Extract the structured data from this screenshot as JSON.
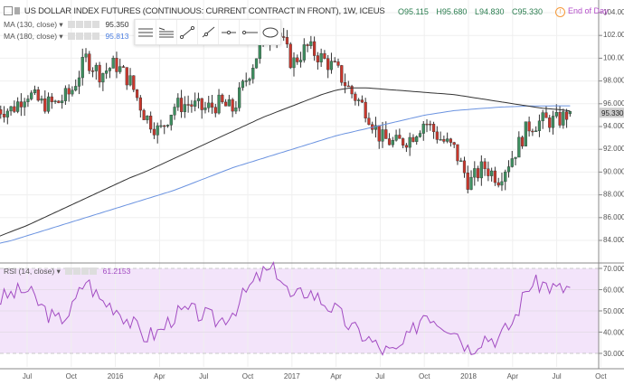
{
  "header": {
    "title": "US DOLLAR INDEX FUTURES (CONTINUOUS: CURRENT CONTRACT IN FRONT), 1W, ICEUS",
    "open": "O95.115",
    "high": "H95.680",
    "low": "L94.830",
    "close": "C95.330",
    "end_of_day": "End of Day"
  },
  "legends": {
    "ma130_label": "MA (130, close)",
    "ma130_value": "95.350",
    "ma180_label": "MA (180, close)",
    "ma180_value": "95.813",
    "rsi_label": "RSI (14, close)",
    "rsi_value": "61.2153"
  },
  "toolbar": {
    "icons": [
      "parallel-channel-icon",
      "fib-icon",
      "trend-line-icon",
      "ray-icon",
      "horizontal-line-icon",
      "horizontal-ray-icon",
      "ellipse-icon"
    ]
  },
  "colors": {
    "up": "#3d8f5f",
    "down": "#c9372c",
    "ma130": "#333333",
    "ma180": "#6b93e0",
    "rsi": "#a24cc2",
    "rsi_band": "#f3e4fa"
  },
  "chart_data": {
    "type": "candlestick",
    "interval": "1W",
    "months": [
      "2015-05",
      "2015-06",
      "2015-07",
      "2015-08",
      "2015-09",
      "2015-10",
      "2015-11",
      "2015-12",
      "2016-01",
      "2016-02",
      "2016-03",
      "2016-04",
      "2016-05",
      "2016-06",
      "2016-07",
      "2016-08",
      "2016-09",
      "2016-10",
      "2016-11",
      "2016-12",
      "2017-01",
      "2017-02",
      "2017-03",
      "2017-04",
      "2017-05",
      "2017-06",
      "2017-07",
      "2017-08",
      "2017-09",
      "2017-10",
      "2017-11",
      "2017-12",
      "2018-01",
      "2018-02",
      "2018-03",
      "2018-04",
      "2018-05",
      "2018-06",
      "2018-07",
      "2018-08"
    ],
    "close": [
      95.5,
      95.5,
      97,
      96,
      96,
      97,
      100,
      98.6,
      99.5,
      98,
      95,
      93.5,
      95.8,
      96,
      95.5,
      96,
      95.5,
      98.5,
      101.5,
      102.5,
      99.5,
      101,
      100,
      99,
      97,
      95.5,
      93,
      92.5,
      93,
      94.5,
      93,
      92,
      89,
      90.5,
      89.5,
      91.5,
      94,
      94.5,
      94.5,
      95.33
    ],
    "ma130": [
      84.3,
      84.8,
      85.3,
      85.9,
      86.5,
      87.1,
      87.7,
      88.3,
      88.9,
      89.5,
      90,
      90.6,
      91.2,
      91.8,
      92.4,
      93,
      93.6,
      94.2,
      94.8,
      95.3,
      95.8,
      96.3,
      96.8,
      97.2,
      97.4,
      97.4,
      97.3,
      97.2,
      97.1,
      97,
      96.9,
      96.8,
      96.6,
      96.4,
      96.2,
      96,
      95.8,
      95.6,
      95.5,
      95.35
    ],
    "ma180": [
      83.7,
      84,
      84.4,
      84.8,
      85.2,
      85.6,
      86,
      86.4,
      86.8,
      87.2,
      87.6,
      88,
      88.4,
      88.9,
      89.4,
      89.9,
      90.4,
      90.8,
      91.2,
      91.6,
      92,
      92.4,
      92.8,
      93.2,
      93.5,
      93.8,
      94.1,
      94.4,
      94.7,
      95,
      95.2,
      95.4,
      95.5,
      95.6,
      95.7,
      95.75,
      95.8,
      95.8,
      95.82,
      95.813
    ],
    "rsi": [
      55,
      58,
      60,
      52,
      45,
      50,
      65,
      55,
      52,
      45,
      38,
      40,
      48,
      50,
      48,
      45,
      50,
      60,
      68,
      69,
      55,
      60,
      55,
      50,
      42,
      38,
      32,
      30,
      38,
      50,
      45,
      42,
      32,
      38,
      37,
      45,
      62,
      63,
      60,
      61.2153
    ],
    "price_axis": {
      "ticks": [
        "84.000",
        "86.000",
        "88.000",
        "90.000",
        "92.000",
        "94.000",
        "96.000",
        "98.000",
        "100.000",
        "102.000",
        "104.000"
      ],
      "last": "95.330"
    },
    "rsi_axis": {
      "ticks": [
        "30.0000",
        "40.0000",
        "50.0000",
        "60.0000",
        "70.0000"
      ]
    },
    "x_ticks": [
      "Jul",
      "Oct",
      "2016",
      "Apr",
      "Jul",
      "Oct",
      "2017",
      "Apr",
      "Jul",
      "Oct",
      "2018",
      "Apr",
      "Jul",
      "Oct"
    ]
  }
}
